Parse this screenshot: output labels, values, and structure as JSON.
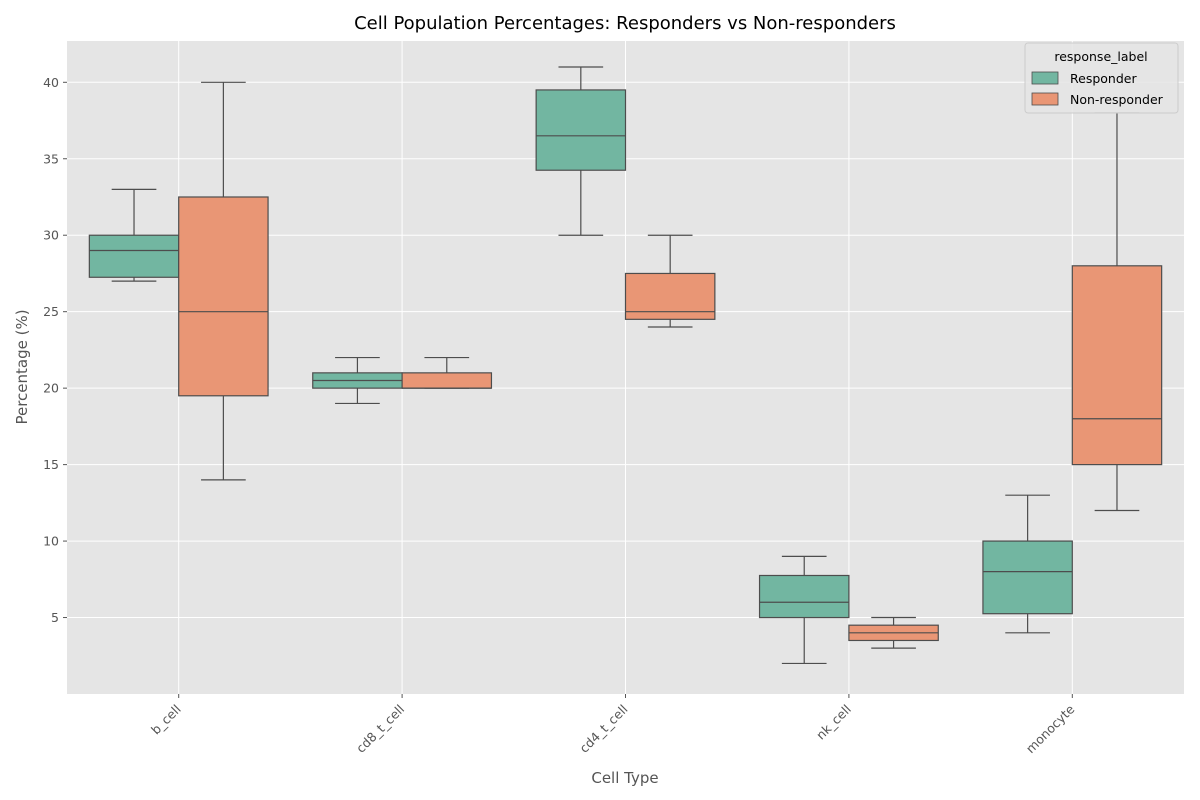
{
  "chart_data": {
    "type": "box",
    "title": "Cell Population Percentages: Responders vs Non-responders",
    "xlabel": "Cell Type",
    "ylabel": "Percentage (%)",
    "ylim": [
      0,
      42.7
    ],
    "yticks": [
      5,
      10,
      15,
      20,
      25,
      30,
      35,
      40
    ],
    "categories": [
      "b_cell",
      "cd8_t_cell",
      "cd4_t_cell",
      "nk_cell",
      "monocyte"
    ],
    "grid": true,
    "legend": {
      "title": "response_label",
      "position": "top-right"
    },
    "series": [
      {
        "name": "Responder",
        "color": "#72b6a1",
        "boxes": [
          {
            "category": "b_cell",
            "whisker_low": 27,
            "q1": 27.25,
            "median": 29,
            "q3": 30,
            "whisker_high": 33
          },
          {
            "category": "cd8_t_cell",
            "whisker_low": 19,
            "q1": 20,
            "median": 20.5,
            "q3": 21,
            "whisker_high": 22
          },
          {
            "category": "cd4_t_cell",
            "whisker_low": 30,
            "q1": 34.25,
            "median": 36.5,
            "q3": 39.5,
            "whisker_high": 41
          },
          {
            "category": "nk_cell",
            "whisker_low": 2,
            "q1": 5,
            "median": 6,
            "q3": 7.75,
            "whisker_high": 9
          },
          {
            "category": "monocyte",
            "whisker_low": 4,
            "q1": 5.25,
            "median": 8,
            "q3": 10,
            "whisker_high": 13
          }
        ]
      },
      {
        "name": "Non-responder",
        "color": "#e99675",
        "boxes": [
          {
            "category": "b_cell",
            "whisker_low": 14,
            "q1": 19.5,
            "median": 25,
            "q3": 32.5,
            "whisker_high": 40
          },
          {
            "category": "cd8_t_cell",
            "whisker_low": 20,
            "q1": 20,
            "median": 20,
            "q3": 21,
            "whisker_high": 22
          },
          {
            "category": "cd4_t_cell",
            "whisker_low": 24,
            "q1": 24.5,
            "median": 25,
            "q3": 27.5,
            "whisker_high": 30
          },
          {
            "category": "nk_cell",
            "whisker_low": 3,
            "q1": 3.5,
            "median": 4,
            "q3": 4.5,
            "whisker_high": 5
          },
          {
            "category": "monocyte",
            "whisker_low": 12,
            "q1": 15,
            "median": 18,
            "q3": 28,
            "whisker_high": 38
          }
        ]
      }
    ]
  }
}
